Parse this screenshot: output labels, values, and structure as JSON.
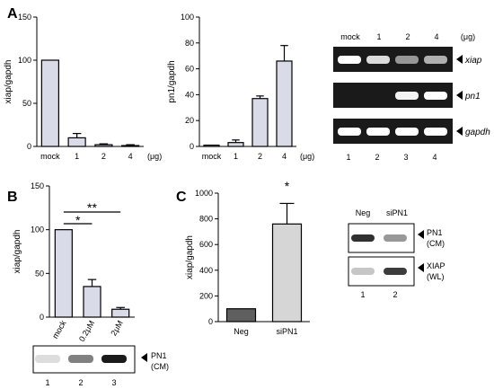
{
  "panel_labels": [
    "A",
    "B",
    "C"
  ],
  "colors": {
    "bar": "#d9dce8",
    "dark_bar": "#5f5f5f",
    "light_bar": "#d6d6d6",
    "gel_bg": "#1a1a1a",
    "band": "#ffffff",
    "blot_bg": "#ffffff",
    "blot_band": "#1a1a1a"
  },
  "chart_data": [
    {
      "panel": "A",
      "type": "bar",
      "categories": [
        "mock",
        "1",
        "2",
        "4"
      ],
      "values": [
        100,
        10,
        2,
        1
      ],
      "errors": [
        0,
        5,
        1,
        1
      ],
      "ylabel": "xiap/gapdh",
      "xunit": "(μg)",
      "ylim": [
        0,
        150
      ],
      "yticks": [
        0,
        50,
        100,
        150
      ],
      "grid": false
    },
    {
      "panel": "A",
      "type": "bar",
      "categories": [
        "mock",
        "1",
        "2",
        "4"
      ],
      "values": [
        1,
        3,
        37,
        66
      ],
      "errors": [
        0,
        2,
        2,
        12
      ],
      "ylabel": "pn1/gapdh",
      "xunit": "(μg)",
      "ylim": [
        0,
        100
      ],
      "yticks": [
        0,
        20,
        40,
        60,
        80,
        100
      ],
      "grid": false
    },
    {
      "panel": "B",
      "type": "bar",
      "categories": [
        "mock",
        "0.2μM",
        "2μM"
      ],
      "values": [
        100,
        35,
        9
      ],
      "errors": [
        0,
        8,
        2
      ],
      "ylabel": "xiap/gapdh",
      "ylim": [
        0,
        150
      ],
      "yticks": [
        0,
        50,
        100,
        150
      ],
      "significance": [
        "*",
        "**"
      ],
      "grid": false
    },
    {
      "panel": "C",
      "type": "bar",
      "categories": [
        "Neg",
        "siPN1"
      ],
      "values": [
        100,
        760
      ],
      "errors": [
        0,
        160
      ],
      "ylabel": "xiap/gapdh",
      "ylim": [
        0,
        1000
      ],
      "yticks": [
        0,
        200,
        400,
        600,
        800,
        1000
      ],
      "significance": [
        "*"
      ],
      "grid": false
    }
  ],
  "gel_A": {
    "header": [
      "mock",
      "1",
      "2",
      "4"
    ],
    "unit": "(μg)",
    "rows": [
      {
        "label": "xiap",
        "intensity": [
          1.0,
          0.85,
          0.55,
          0.65
        ]
      },
      {
        "label": "pn1",
        "intensity": [
          0.0,
          0.0,
          0.95,
          1.0
        ]
      },
      {
        "label": "gapdh",
        "intensity": [
          1.0,
          1.0,
          1.0,
          1.0
        ]
      }
    ],
    "lanes": [
      "1",
      "2",
      "3",
      "4"
    ]
  },
  "blot_B": {
    "label": [
      "PN1",
      "(CM)"
    ],
    "intensity": [
      0.15,
      0.55,
      1.0
    ],
    "lanes": [
      "1",
      "2",
      "3"
    ]
  },
  "blot_C": {
    "header": [
      "Neg",
      "siPN1"
    ],
    "rows": [
      {
        "label": [
          "PN1",
          "(CM)"
        ],
        "intensity": [
          0.9,
          0.45
        ]
      },
      {
        "label": [
          "XIAP",
          "(WL)"
        ],
        "intensity": [
          0.25,
          0.85
        ]
      }
    ],
    "lanes": [
      "1",
      "2"
    ]
  }
}
